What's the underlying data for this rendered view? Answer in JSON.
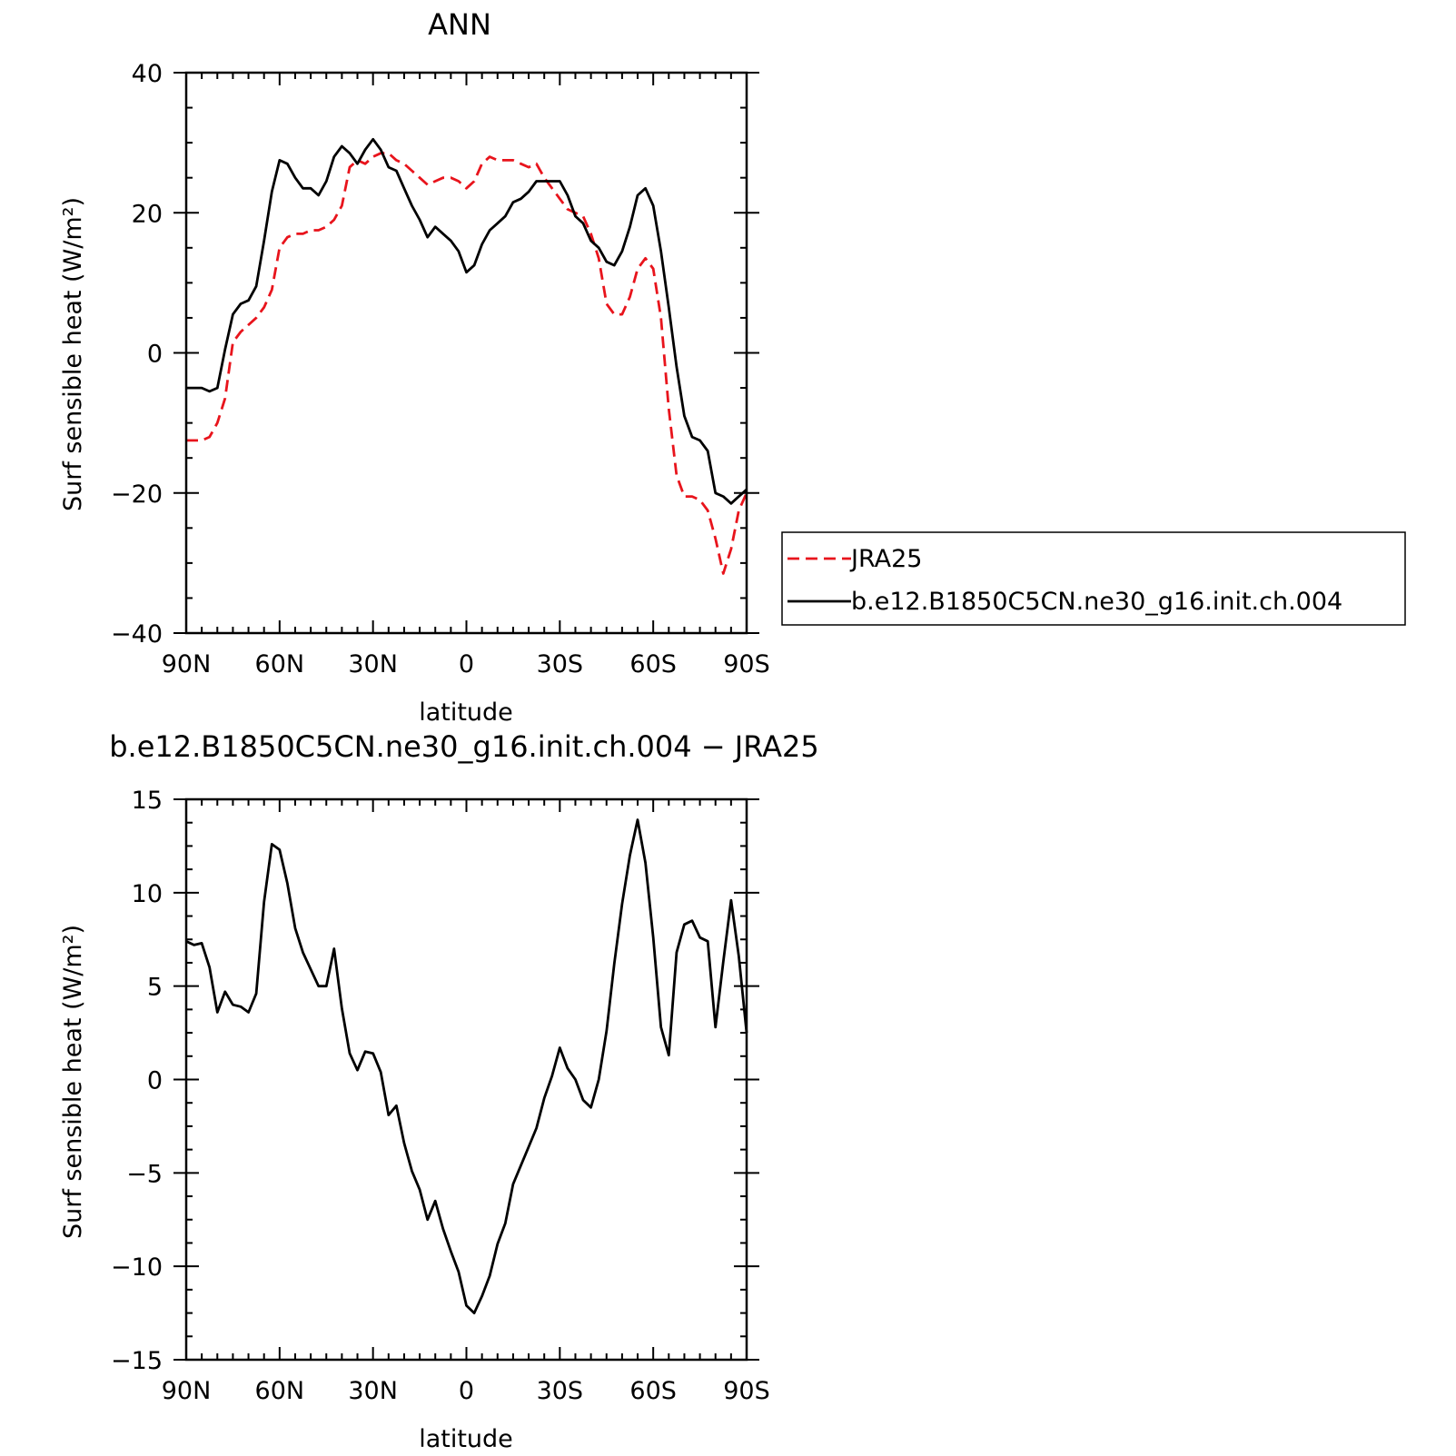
{
  "chart_data": [
    {
      "type": "line",
      "title": "ANN",
      "xlabel": "latitude",
      "ylabel": "Surf sensible heat (W/m²)",
      "xlim": [
        90,
        -90
      ],
      "ylim": [
        -40,
        40
      ],
      "x_ticks": [
        90,
        60,
        30,
        0,
        -30,
        -60,
        -90
      ],
      "x_tick_labels": [
        "90N",
        "60N",
        "30N",
        "0",
        "30S",
        "60S",
        "90S"
      ],
      "y_ticks": [
        -40,
        -20,
        0,
        20,
        40
      ],
      "y_tick_labels": [
        "−40",
        "−20",
        "0",
        "20",
        "40"
      ],
      "grid": false,
      "legend_placement": "right-middle",
      "series": [
        {
          "name": "JRA25",
          "color": "#e8141c",
          "dash": "dashed",
          "x": [
            90,
            87.5,
            85,
            82.5,
            80,
            77.5,
            75,
            72.5,
            70,
            67.5,
            65,
            62.5,
            60,
            57.5,
            55,
            52.5,
            50,
            47.5,
            45,
            42.5,
            40,
            37.5,
            35,
            32.5,
            30,
            27.5,
            25,
            22.5,
            20,
            17.5,
            15,
            12.5,
            10,
            7.5,
            5,
            2.5,
            0,
            -2.5,
            -5,
            -7.5,
            -10,
            -12.5,
            -15,
            -17.5,
            -20,
            -22.5,
            -25,
            -27.5,
            -30,
            -32.5,
            -35,
            -37.5,
            -40,
            -42.5,
            -45,
            -47.5,
            -50,
            -52.5,
            -55,
            -57.5,
            -60,
            -62.5,
            -65,
            -67.5,
            -70,
            -72.5,
            -75,
            -77.5,
            -80,
            -82.5,
            -85,
            -87.5,
            -90
          ],
          "values": [
            -12.5,
            -12.5,
            -12.5,
            -12,
            -10,
            -6.5,
            1.5,
            3,
            4,
            5,
            6.5,
            9,
            15,
            16.5,
            17,
            17,
            17.5,
            17.5,
            18,
            19,
            21,
            26.5,
            27.5,
            27,
            28,
            28.5,
            28.5,
            27.5,
            27,
            26,
            25,
            24,
            24.5,
            25,
            25,
            24.5,
            23.5,
            24.5,
            27,
            28,
            27.5,
            27.5,
            27.5,
            27,
            26.5,
            27,
            25,
            23.5,
            22,
            20.5,
            20,
            19.5,
            17,
            13.5,
            7,
            5.5,
            5.5,
            8,
            12,
            13.5,
            12,
            5,
            -8,
            -17.5,
            -20.5,
            -20.5,
            -21,
            -22.5,
            -26.5,
            -31.5,
            -28,
            -22.5,
            -20
          ]
        },
        {
          "name": "b.e12.B1850C5CN.ne30_g16.init.ch.004",
          "color": "#000000",
          "dash": "solid",
          "x": [
            90,
            87.5,
            85,
            82.5,
            80,
            77.5,
            75,
            72.5,
            70,
            67.5,
            65,
            62.5,
            60,
            57.5,
            55,
            52.5,
            50,
            47.5,
            45,
            42.5,
            40,
            37.5,
            35,
            32.5,
            30,
            27.5,
            25,
            22.5,
            20,
            17.5,
            15,
            12.5,
            10,
            7.5,
            5,
            2.5,
            0,
            -2.5,
            -5,
            -7.5,
            -10,
            -12.5,
            -15,
            -17.5,
            -20,
            -22.5,
            -25,
            -27.5,
            -30,
            -32.5,
            -35,
            -37.5,
            -40,
            -42.5,
            -45,
            -47.5,
            -50,
            -52.5,
            -55,
            -57.5,
            -60,
            -62.5,
            -65,
            -67.5,
            -70,
            -72.5,
            -75,
            -77.5,
            -80,
            -82.5,
            -85,
            -87.5,
            -90
          ],
          "values": [
            -5,
            -5,
            -5,
            -5.5,
            -5,
            0.5,
            5.5,
            7,
            7.5,
            9.5,
            16,
            23,
            27.5,
            27,
            25,
            23.5,
            23.5,
            22.5,
            24.5,
            28,
            29.5,
            28.5,
            27,
            29,
            30.5,
            29,
            26.5,
            26,
            23.5,
            21,
            19,
            16.5,
            18,
            17,
            16,
            14.5,
            11.5,
            12.5,
            15.5,
            17.5,
            18.5,
            19.5,
            21.5,
            22,
            23,
            24.5,
            24.5,
            24.5,
            24.5,
            22.5,
            19.5,
            18.5,
            16,
            15,
            13,
            12.5,
            14.5,
            18,
            22.5,
            23.5,
            21,
            14.5,
            6.5,
            -2,
            -9,
            -12,
            -12.5,
            -14,
            -20,
            -20.5,
            -21.5,
            -20.5,
            -19.5
          ]
        }
      ]
    },
    {
      "type": "line",
      "title": "b.e12.B1850C5CN.ne30_g16.init.ch.004 − JRA25",
      "xlabel": "latitude",
      "ylabel": "Surf sensible heat (W/m²)",
      "xlim": [
        90,
        -90
      ],
      "ylim": [
        -15,
        15
      ],
      "x_ticks": [
        90,
        60,
        30,
        0,
        -30,
        -60,
        -90
      ],
      "x_tick_labels": [
        "90N",
        "60N",
        "30N",
        "0",
        "30S",
        "60S",
        "90S"
      ],
      "y_ticks": [
        -15,
        -10,
        -5,
        0,
        5,
        10,
        15
      ],
      "y_tick_labels": [
        "−15",
        "−10",
        "−5",
        "0",
        "5",
        "10",
        "15"
      ],
      "grid": false,
      "series": [
        {
          "color": "#000000",
          "dash": "solid",
          "x": [
            90,
            87.5,
            85,
            82.5,
            80,
            77.5,
            75,
            72.5,
            70,
            67.5,
            65,
            62.5,
            60,
            57.5,
            55,
            52.5,
            50,
            47.5,
            45,
            42.5,
            40,
            37.5,
            35,
            32.5,
            30,
            27.5,
            25,
            22.5,
            20,
            17.5,
            15,
            12.5,
            10,
            7.5,
            5,
            2.5,
            0,
            -2.5,
            -5,
            -7.5,
            -10,
            -12.5,
            -15,
            -17.5,
            -20,
            -22.5,
            -25,
            -27.5,
            -30,
            -32.5,
            -35,
            -37.5,
            -40,
            -42.5,
            -45,
            -47.5,
            -50,
            -52.5,
            -55,
            -57.5,
            -60,
            -62.5,
            -65,
            -67.5,
            -70,
            -72.5,
            -75,
            -77.5,
            -80,
            -82.5,
            -85,
            -87.5,
            -90
          ],
          "values": [
            7.4,
            7.2,
            7.3,
            6,
            3.6,
            4.7,
            4,
            3.9,
            3.6,
            4.6,
            9.5,
            12.6,
            12.3,
            10.5,
            8.1,
            6.8,
            5.9,
            5,
            5,
            7,
            3.8,
            1.4,
            0.5,
            1.5,
            1.4,
            0.4,
            -1.9,
            -1.4,
            -3.4,
            -4.9,
            -5.9,
            -7.5,
            -6.5,
            -8,
            -9.2,
            -10.3,
            -12.1,
            -12.5,
            -11.6,
            -10.5,
            -8.8,
            -7.7,
            -5.6,
            -4.6,
            -3.6,
            -2.6,
            -1,
            0.2,
            1.7,
            0.6,
            0,
            -1.1,
            -1.5,
            0,
            2.6,
            6.2,
            9.4,
            12,
            13.9,
            11.6,
            7.6,
            2.8,
            1.3,
            6.8,
            8.3,
            8.5,
            7.6,
            7.4,
            2.8,
            6.3,
            9.6,
            6.6,
            2.5
          ]
        }
      ]
    }
  ]
}
